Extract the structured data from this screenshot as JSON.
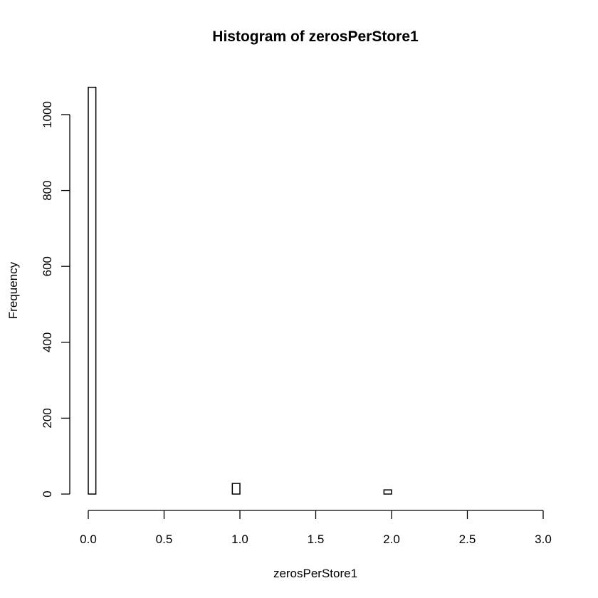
{
  "chart_data": {
    "type": "bar",
    "title": "Histogram of zerosPerStore1",
    "xlabel": "zerosPerStore1",
    "ylabel": "Frequency",
    "xlim": [
      0,
      3
    ],
    "ylim": [
      0,
      1075
    ],
    "x_ticks": [
      0,
      0.5,
      1,
      1.5,
      2,
      2.5,
      3
    ],
    "x_tick_labels": [
      "0.0",
      "0.5",
      "1.0",
      "1.5",
      "2.0",
      "2.5",
      "3.0"
    ],
    "y_ticks": [
      0,
      200,
      400,
      600,
      800,
      1000
    ],
    "y_tick_labels": [
      "0",
      "200",
      "400",
      "600",
      "800",
      "1000"
    ],
    "bin_width": 0.05,
    "bin_start": 0,
    "bin_count": 60,
    "bars": [
      {
        "x0": 0.0,
        "x1": 0.05,
        "count": 1072
      },
      {
        "x0": 0.95,
        "x1": 1.0,
        "count": 28
      },
      {
        "x0": 1.95,
        "x1": 2.0,
        "count": 11
      }
    ],
    "grid": false,
    "legend": "none"
  }
}
